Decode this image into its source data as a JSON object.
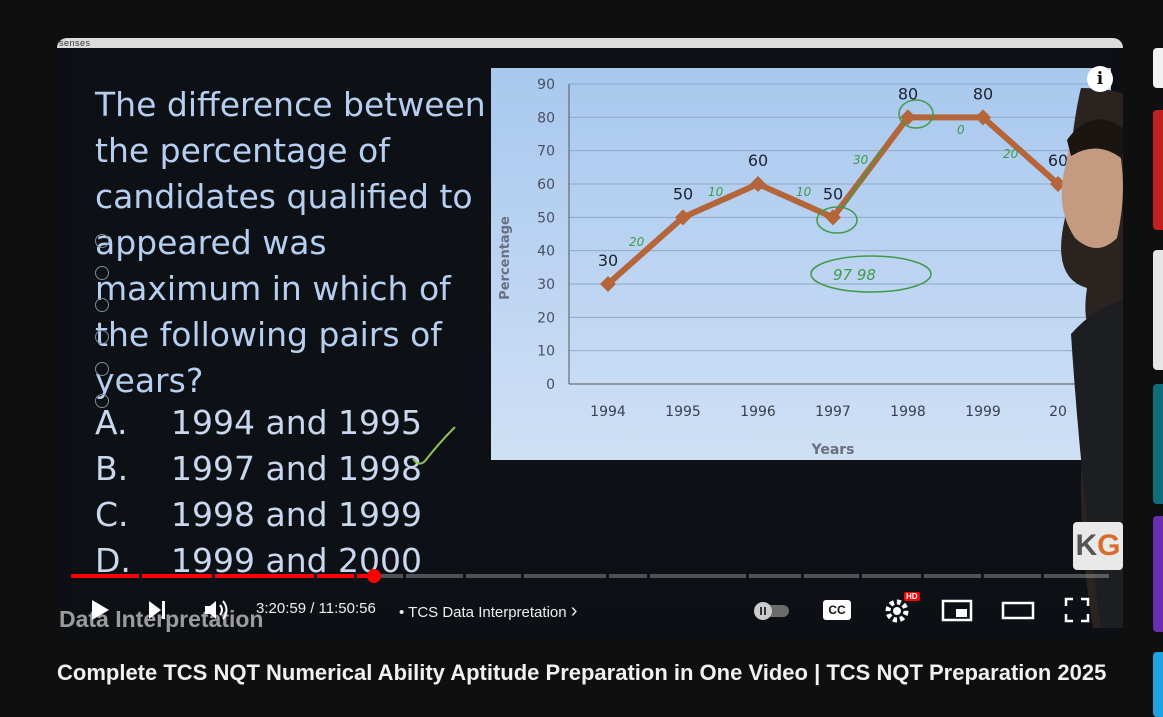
{
  "video": {
    "brand": "senses",
    "question": "The difference between the percentage of candidates qualified to appeared was maximum in which of the following pairs of years?",
    "options": [
      {
        "letter": "A.",
        "text": "1994 and 1995"
      },
      {
        "letter": "B.",
        "text": "1997 and 1998"
      },
      {
        "letter": "C.",
        "text": "1998 and 1999"
      },
      {
        "letter": "D.",
        "text": "1999 and 2000"
      }
    ],
    "annotations": {
      "n1": "20",
      "n2": "10",
      "n3": "10",
      "n4": "30",
      "n5": "0",
      "n6": "20",
      "circled": "97  98"
    },
    "watermark": "Data Interpretation",
    "logo_k": "K",
    "logo_g": "G",
    "info": "i"
  },
  "chart_data": {
    "type": "line",
    "x": [
      "1994",
      "1995",
      "1996",
      "1997",
      "1998",
      "1999",
      "2000"
    ],
    "xtick_labels": [
      "1994",
      "1995",
      "1996",
      "1997",
      "1998",
      "1999",
      "20"
    ],
    "y": [
      30,
      50,
      60,
      50,
      80,
      80,
      60
    ],
    "data_labels": [
      "30",
      "50",
      "60",
      "50",
      "80",
      "80",
      "60"
    ],
    "ylabel": "Percentage",
    "xlabel": "Years",
    "ylim": [
      0,
      90
    ],
    "yticks": [
      0,
      10,
      20,
      30,
      40,
      50,
      60,
      70,
      80,
      90
    ],
    "grid": true,
    "line_color": "#b4653a"
  },
  "player": {
    "time": "3:20:59 / 11:50:56",
    "chapter_prefix": "•",
    "chapter": "TCS Data Interpretation",
    "chapter_arrow": "›",
    "cc": "CC",
    "hd": "HD",
    "progress_fraction": 0.28,
    "colors": {
      "progress": "#ff0000",
      "background": "#0f0f0f"
    }
  },
  "title": "Complete TCS NQT Numerical Ability Aptitude Preparation in One Video | TCS NQT Preparation 2025"
}
